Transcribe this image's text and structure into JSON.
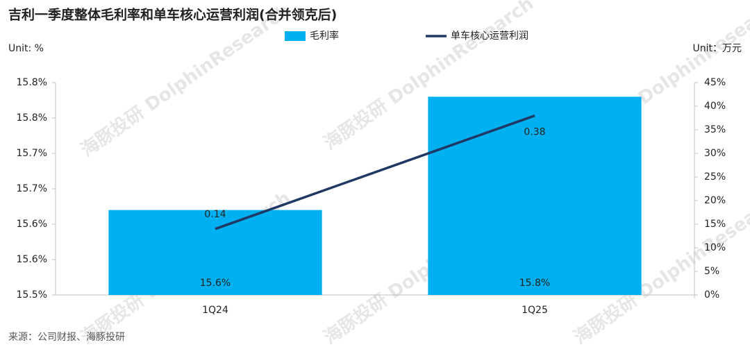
{
  "chart_data": {
    "type": "bar",
    "title": "吉利一季度整体毛利率和单车核心运营利润(合并领克后)",
    "y_label": "Unit: %",
    "y2_label": "Unit：万元",
    "source": "来源：公司财报、海豚投研",
    "watermark": "海豚投研 DolphinResearch",
    "categories": [
      "1Q24",
      "1Q25"
    ],
    "series": [
      {
        "name": "毛利率",
        "type": "bar",
        "color": "#00b0f0",
        "values": [
          15.62,
          15.78
        ],
        "value_labels": [
          "15.6%",
          "15.8%"
        ]
      },
      {
        "name": "单车核心运营利润",
        "type": "line",
        "axis": "y2",
        "color": "#1f3864",
        "values": [
          14,
          38
        ],
        "value_labels": [
          "0.14",
          "0.38"
        ]
      }
    ],
    "ylim": [
      15.5,
      15.8
    ],
    "yticks": [
      {
        "value": 15.5,
        "label": "15.5%"
      },
      {
        "value": 15.55,
        "label": "15.6%"
      },
      {
        "value": 15.6,
        "label": "15.6%"
      },
      {
        "value": 15.65,
        "label": "15.7%"
      },
      {
        "value": 15.7,
        "label": "15.7%"
      },
      {
        "value": 15.75,
        "label": "15.8%"
      },
      {
        "value": 15.8,
        "label": "15.8%"
      }
    ],
    "y2lim": [
      0,
      45
    ],
    "y2ticks": [
      {
        "value": 0,
        "label": "0%"
      },
      {
        "value": 5,
        "label": "5%"
      },
      {
        "value": 10,
        "label": "10%"
      },
      {
        "value": 15,
        "label": "15%"
      },
      {
        "value": 20,
        "label": "20%"
      },
      {
        "value": 25,
        "label": "25%"
      },
      {
        "value": 30,
        "label": "30%"
      },
      {
        "value": 35,
        "label": "35%"
      },
      {
        "value": 40,
        "label": "40%"
      },
      {
        "value": 45,
        "label": "45%"
      }
    ],
    "grid": false,
    "legend": "top"
  }
}
